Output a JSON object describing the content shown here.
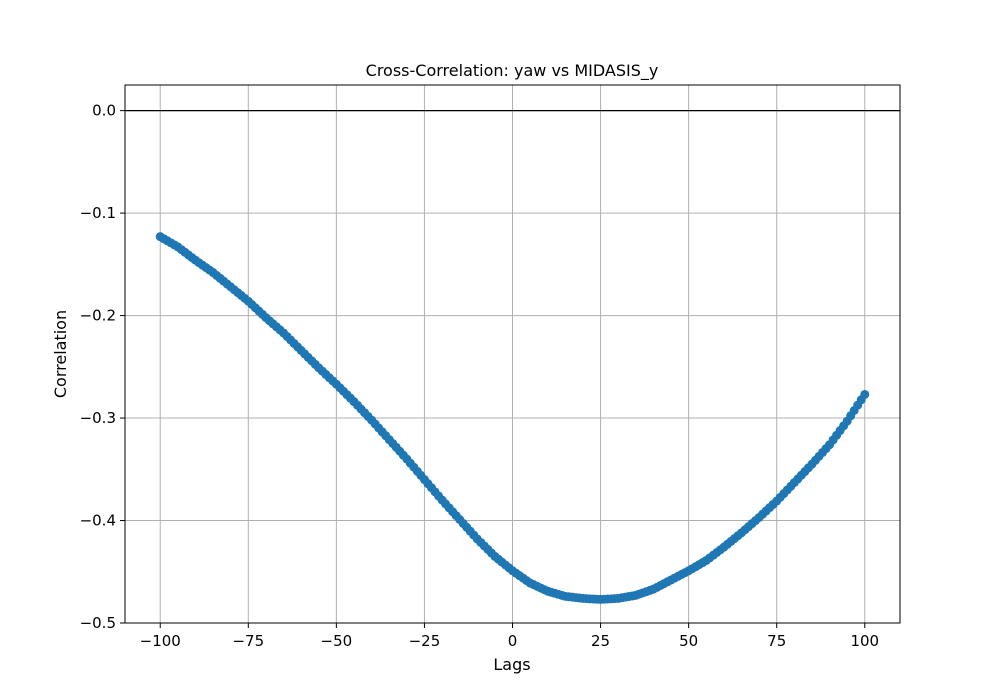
{
  "chart_data": {
    "type": "scatter",
    "title": "Cross-Correlation: yaw vs MIDASIS_y",
    "xlabel": "Lags",
    "ylabel": "Correlation",
    "xlim": [
      -110,
      110
    ],
    "ylim": [
      -0.5,
      0.025
    ],
    "x_ticks": [
      -100,
      -75,
      -50,
      -25,
      0,
      25,
      50,
      75,
      100
    ],
    "x_tick_labels": [
      "−100",
      "−75",
      "−50",
      "−25",
      "0",
      "25",
      "50",
      "75",
      "100"
    ],
    "y_ticks": [
      -0.5,
      -0.4,
      -0.3,
      -0.2,
      -0.1,
      0.0
    ],
    "y_tick_labels": [
      "−0.5",
      "−0.4",
      "−0.3",
      "−0.2",
      "−0.1",
      "0.0"
    ],
    "grid": true,
    "reference_line_y": 0,
    "marker_color": "#1f77b4",
    "reference_line_color": "#000000",
    "series": [
      {
        "x": [
          -100,
          -95,
          -90,
          -85,
          -80,
          -75,
          -70,
          -65,
          -60,
          -55,
          -50,
          -45,
          -40,
          -35,
          -30,
          -25,
          -20,
          -15,
          -10,
          -5,
          0,
          5,
          10,
          15,
          20,
          25,
          30,
          35,
          40,
          45,
          50,
          55,
          60,
          65,
          70,
          75,
          80,
          85,
          90,
          95,
          100
        ],
        "y": [
          -0.123,
          -0.133,
          -0.146,
          -0.158,
          -0.172,
          -0.186,
          -0.202,
          -0.217,
          -0.234,
          -0.251,
          -0.267,
          -0.284,
          -0.302,
          -0.321,
          -0.34,
          -0.36,
          -0.38,
          -0.399,
          -0.418,
          -0.435,
          -0.449,
          -0.461,
          -0.469,
          -0.474,
          -0.476,
          -0.477,
          -0.476,
          -0.473,
          -0.467,
          -0.458,
          -0.449,
          -0.439,
          -0.426,
          -0.412,
          -0.397,
          -0.381,
          -0.363,
          -0.345,
          -0.326,
          -0.303,
          -0.277
        ]
      }
    ]
  }
}
